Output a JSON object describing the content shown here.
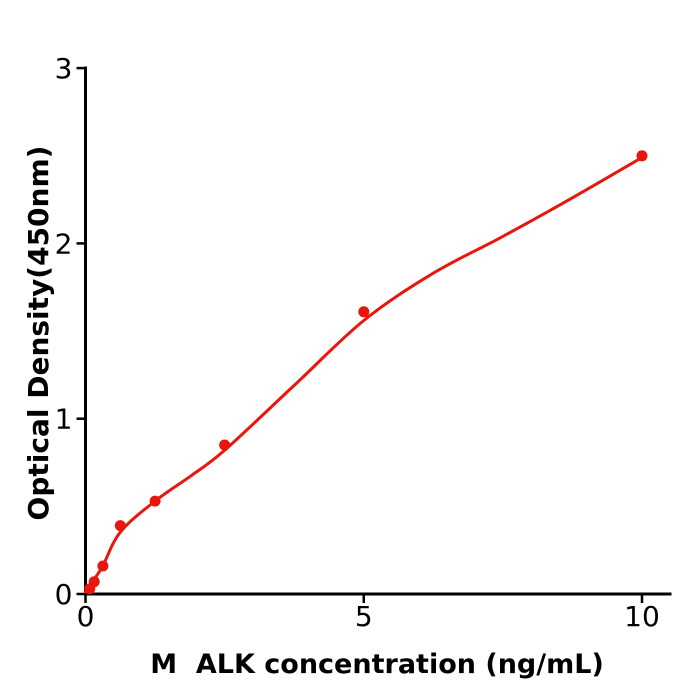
{
  "chart_data": {
    "type": "scatter",
    "title": "",
    "xlabel": "M  ALK concentration (ng/mL)",
    "ylabel": "Optical Density(450nm)",
    "xlim": [
      0,
      10.5
    ],
    "ylim": [
      0,
      3
    ],
    "grid": false,
    "legend": "none",
    "x_ticks": [
      0,
      5,
      10
    ],
    "y_ticks": [
      0,
      1,
      2,
      3
    ],
    "accent_color": "#e8160c",
    "axis_color": "#000000",
    "series": [
      {
        "name": "standard-points",
        "type": "scatter",
        "marker": "circle",
        "marker_radius": 5.5,
        "points": [
          [
            0.078,
            0.03
          ],
          [
            0.156,
            0.07
          ],
          [
            0.313,
            0.16
          ],
          [
            0.625,
            0.39
          ],
          [
            1.25,
            0.53
          ],
          [
            2.5,
            0.85
          ],
          [
            5,
            1.61
          ],
          [
            10,
            2.5
          ]
        ]
      }
    ],
    "fit_curve": {
      "name": "4pl-fit-curve",
      "type": "line",
      "line_width": 3,
      "points": [
        [
          0,
          0.01
        ],
        [
          0.08,
          0.045
        ],
        [
          0.16,
          0.085
        ],
        [
          0.31,
          0.16
        ],
        [
          0.63,
          0.355
        ],
        [
          1.25,
          0.53
        ],
        [
          1.9,
          0.675
        ],
        [
          2.5,
          0.82
        ],
        [
          3.75,
          1.19
        ],
        [
          5,
          1.56
        ],
        [
          6.25,
          1.83
        ],
        [
          7.5,
          2.04
        ],
        [
          8.75,
          2.26
        ],
        [
          10,
          2.49
        ]
      ]
    }
  }
}
